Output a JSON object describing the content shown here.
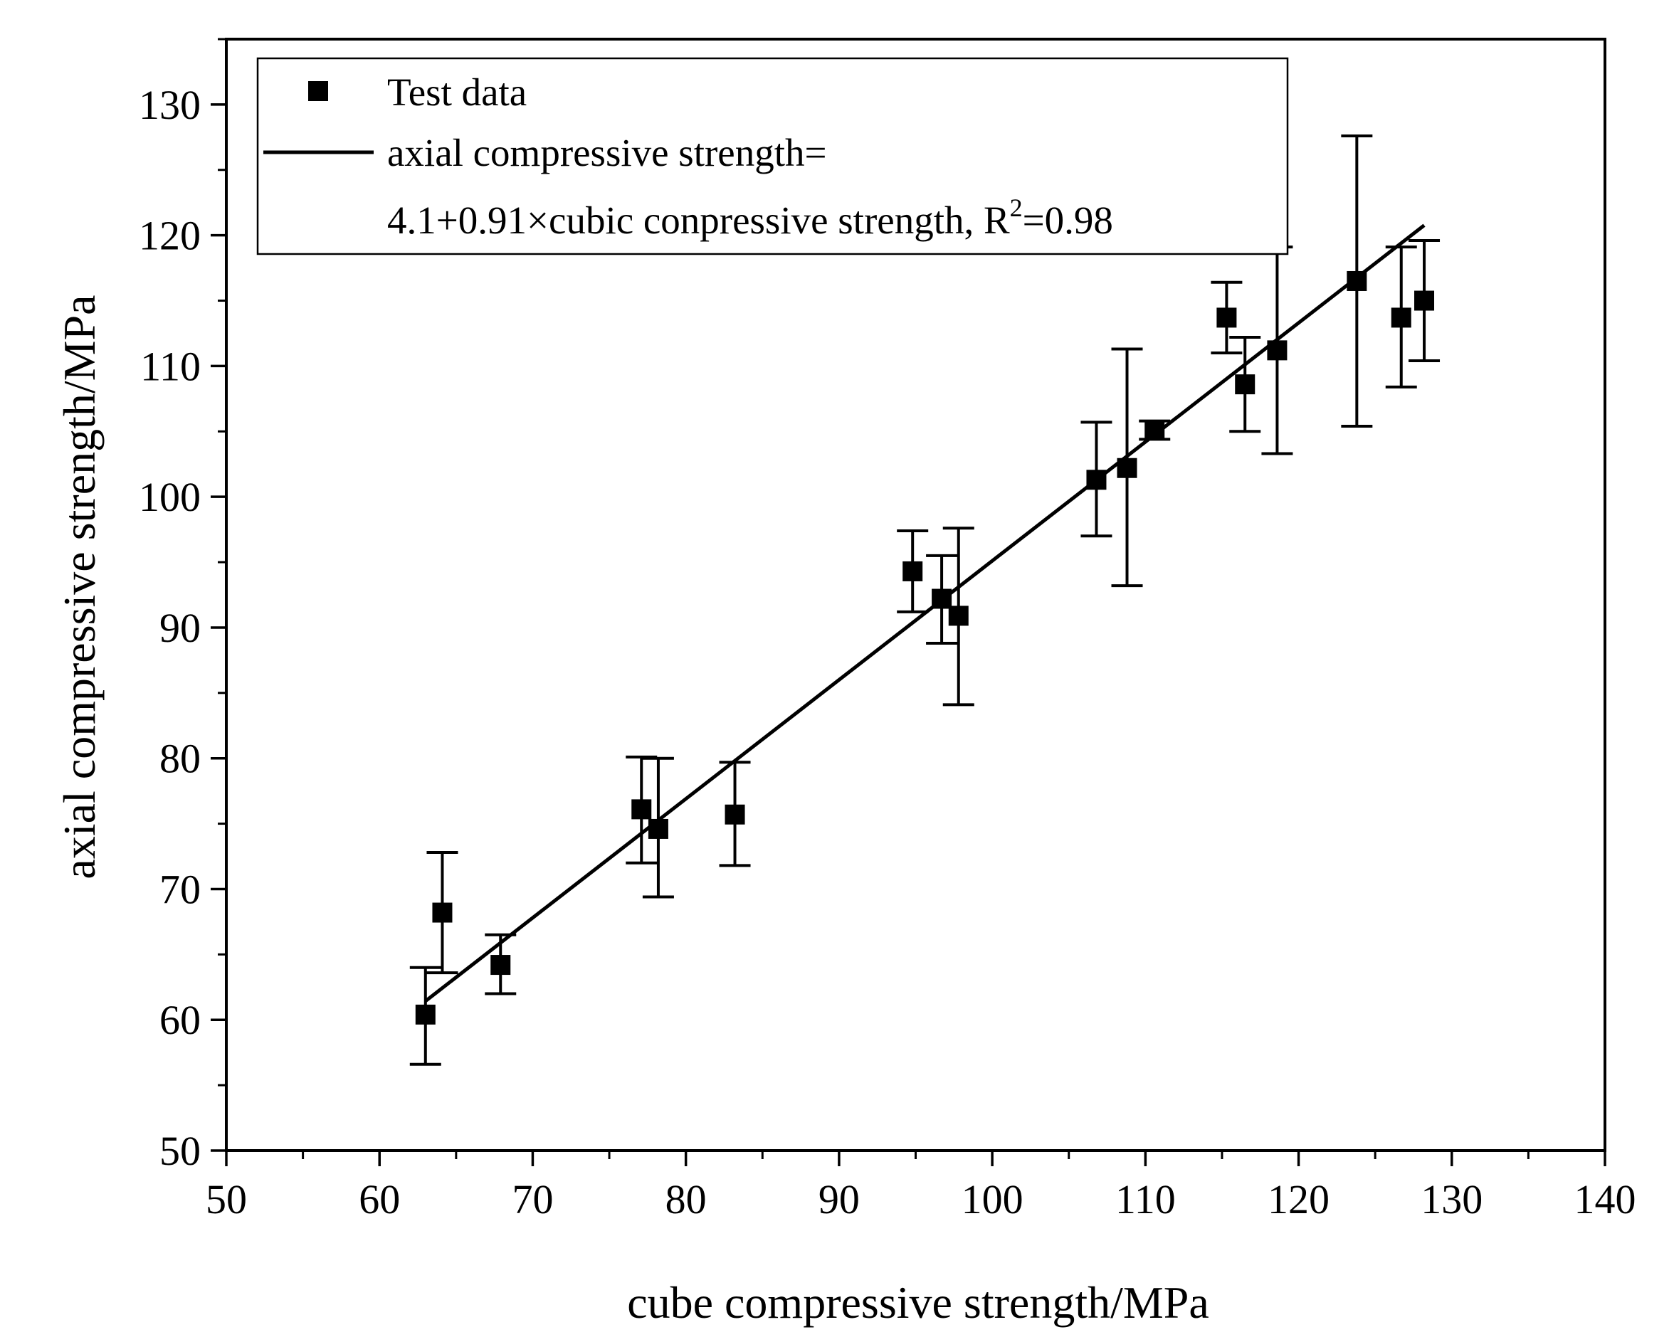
{
  "chart_data": {
    "type": "scatter",
    "title": "",
    "xlabel": "cube compressive strength/MPa",
    "ylabel": "axial compressive strength/MPa",
    "xlim": [
      50,
      140
    ],
    "ylim": [
      50,
      135
    ],
    "x_ticks": [
      50,
      60,
      70,
      80,
      90,
      100,
      110,
      120,
      130,
      140
    ],
    "y_ticks": [
      50,
      60,
      70,
      80,
      90,
      100,
      110,
      120,
      130
    ],
    "grid": false,
    "legend_position": "top-left",
    "legend": {
      "scatter_label": "Test data",
      "fit_label_line1": "axial compressive strength=",
      "fit_label_line2_prefix": "4.1+0.91×cubic conpressive strength, R",
      "fit_label_sup": "2",
      "fit_label_line2_suffix": "=0.98"
    },
    "series": [
      {
        "name": "Test data",
        "type": "scatter",
        "marker": "square",
        "color": "#000000",
        "points": [
          {
            "x": 63.0,
            "y": 60.4,
            "err_low": 56.6,
            "err_high": 64.0
          },
          {
            "x": 64.1,
            "y": 68.2,
            "err_low": 63.6,
            "err_high": 72.8
          },
          {
            "x": 67.9,
            "y": 64.2,
            "err_low": 62.0,
            "err_high": 66.5
          },
          {
            "x": 77.1,
            "y": 76.1,
            "err_low": 72.0,
            "err_high": 80.1
          },
          {
            "x": 78.2,
            "y": 74.6,
            "err_low": 69.4,
            "err_high": 80.0
          },
          {
            "x": 83.2,
            "y": 75.7,
            "err_low": 71.8,
            "err_high": 79.7
          },
          {
            "x": 94.8,
            "y": 94.3,
            "err_low": 91.2,
            "err_high": 97.4
          },
          {
            "x": 96.7,
            "y": 92.2,
            "err_low": 88.8,
            "err_high": 95.5
          },
          {
            "x": 97.8,
            "y": 90.9,
            "err_low": 84.1,
            "err_high": 97.6
          },
          {
            "x": 106.8,
            "y": 101.3,
            "err_low": 97.0,
            "err_high": 105.7
          },
          {
            "x": 108.8,
            "y": 102.2,
            "err_low": 93.2,
            "err_high": 111.3
          },
          {
            "x": 110.6,
            "y": 105.1,
            "err_low": 104.4,
            "err_high": 105.8
          },
          {
            "x": 115.3,
            "y": 113.7,
            "err_low": 111.0,
            "err_high": 116.4
          },
          {
            "x": 116.5,
            "y": 108.6,
            "err_low": 105.0,
            "err_high": 112.2
          },
          {
            "x": 118.6,
            "y": 111.2,
            "err_low": 103.3,
            "err_high": 119.1
          },
          {
            "x": 123.8,
            "y": 116.5,
            "err_low": 105.4,
            "err_high": 127.6
          },
          {
            "x": 126.7,
            "y": 113.7,
            "err_low": 108.4,
            "err_high": 119.1
          },
          {
            "x": 128.2,
            "y": 115.0,
            "err_low": 110.4,
            "err_high": 119.6
          }
        ]
      },
      {
        "name": "axial compressive strength=4.1+0.91×cubic conpressive strength",
        "type": "line",
        "color": "#000000",
        "intercept": 4.1,
        "slope": 0.91,
        "x_range": [
          63.0,
          128.2
        ]
      }
    ]
  }
}
